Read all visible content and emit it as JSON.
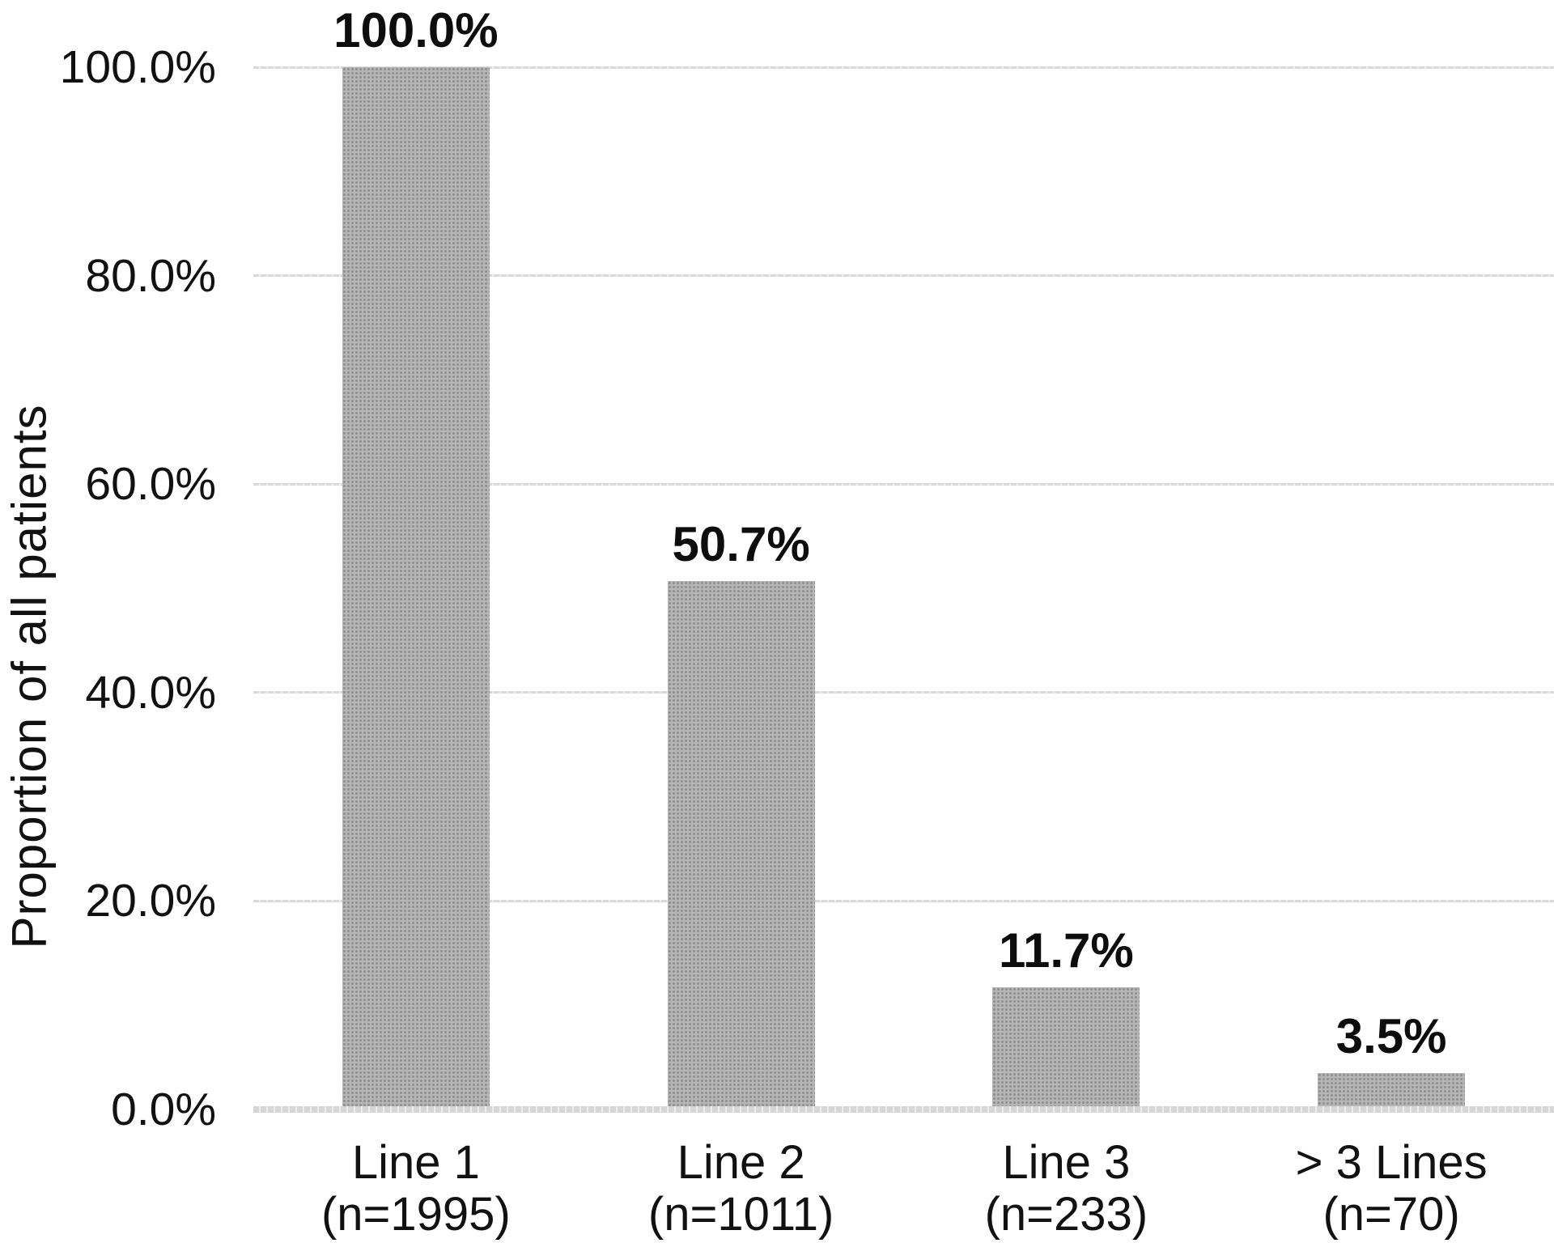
{
  "chart_data": {
    "type": "bar",
    "title": "",
    "ylabel": "Proportion of all patients",
    "xlabel": "",
    "ylim": [
      0,
      100
    ],
    "grid": true,
    "legend": false,
    "y_tick_values": [
      0,
      20,
      40,
      60,
      80,
      100
    ],
    "y_tick_labels": [
      "0.0%",
      "20.0%",
      "40.0%",
      "60.0%",
      "80.0%",
      "100.0%"
    ],
    "categories": [
      "Line 1",
      "Line 2",
      "Line 3",
      "> 3 Lines"
    ],
    "category_sublabels": [
      "(n=1995)",
      "(n=1011)",
      "(n=233)",
      "(n=70)"
    ],
    "values": [
      100.0,
      50.7,
      11.7,
      3.5
    ],
    "value_labels": [
      "100.0%",
      "50.7%",
      "11.7%",
      "3.5%"
    ],
    "colors": {
      "bar_fill": "#b6b6b6",
      "bar_dots": "#8f8f8f",
      "gridline": "#d9d9d9",
      "gridline_gap": "#ececec",
      "axis_line": "#d6d6d6",
      "text": "#111111"
    }
  }
}
